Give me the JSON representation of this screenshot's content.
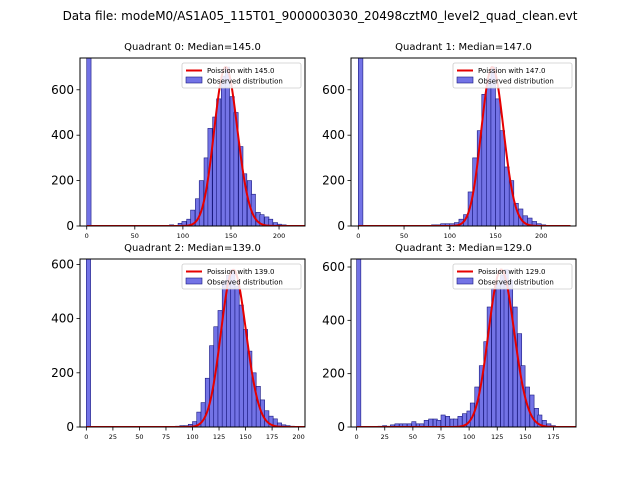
{
  "chart_data": {
    "suptitle": "Data file: modeM0/AS1A05_115T01_9000003030_20498cztM0_level2_quad_clean.evt",
    "panels": [
      {
        "type": "bar",
        "title": "Quadrant 0: Median=145.0",
        "xlim": [
          -7,
          227
        ],
        "ylim": [
          0,
          740
        ],
        "xticks": [
          0,
          50,
          100,
          150,
          200
        ],
        "yticks": [
          0,
          200,
          400,
          600
        ],
        "legend": [
          "Poission with 145.0",
          "Observed distribution"
        ],
        "mu": 145,
        "bin_width": 4.5,
        "bins": [
          [
            0,
            740
          ],
          [
            81,
            3
          ],
          [
            86,
            5
          ],
          [
            90,
            3
          ],
          [
            95,
            12
          ],
          [
            99,
            20
          ],
          [
            104,
            30
          ],
          [
            108,
            70
          ],
          [
            113,
            120
          ],
          [
            117,
            200
          ],
          [
            122,
            300
          ],
          [
            126,
            430
          ],
          [
            131,
            480
          ],
          [
            135,
            560
          ],
          [
            140,
            660
          ],
          [
            144,
            700
          ],
          [
            149,
            570
          ],
          [
            153,
            500
          ],
          [
            158,
            350
          ],
          [
            162,
            230
          ],
          [
            167,
            200
          ],
          [
            171,
            140
          ],
          [
            176,
            60
          ],
          [
            180,
            50
          ],
          [
            185,
            40
          ],
          [
            189,
            30
          ],
          [
            194,
            15
          ],
          [
            198,
            8
          ],
          [
            203,
            5
          ],
          [
            207,
            3
          ]
        ]
      },
      {
        "type": "bar",
        "title": "Quadrant 1: Median=147.0",
        "xlim": [
          -8,
          238
        ],
        "ylim": [
          0,
          740
        ],
        "xticks": [
          0,
          50,
          100,
          150,
          200
        ],
        "yticks": [
          0,
          200,
          400,
          600
        ],
        "legend": [
          "Poission with 147.0",
          "Observed distribution"
        ],
        "mu": 147,
        "bin_width": 5,
        "bins": [
          [
            0,
            740
          ],
          [
            80,
            5
          ],
          [
            85,
            5
          ],
          [
            90,
            10
          ],
          [
            95,
            10
          ],
          [
            100,
            10
          ],
          [
            105,
            15
          ],
          [
            110,
            30
          ],
          [
            115,
            50
          ],
          [
            120,
            150
          ],
          [
            125,
            300
          ],
          [
            130,
            420
          ],
          [
            135,
            580
          ],
          [
            140,
            650
          ],
          [
            145,
            700
          ],
          [
            150,
            560
          ],
          [
            155,
            420
          ],
          [
            160,
            260
          ],
          [
            165,
            200
          ],
          [
            170,
            100
          ],
          [
            175,
            75
          ],
          [
            180,
            45
          ],
          [
            185,
            35
          ],
          [
            190,
            20
          ],
          [
            195,
            10
          ],
          [
            200,
            5
          ]
        ]
      },
      {
        "type": "bar",
        "title": "Quadrant 2: Median=139.0",
        "xlim": [
          -6,
          206
        ],
        "ylim": [
          0,
          620
        ],
        "xticks": [
          0,
          25,
          50,
          75,
          100,
          125,
          150,
          175,
          200
        ],
        "yticks": [
          0,
          200,
          400,
          600
        ],
        "legend": [
          "Poission with 139.0",
          "Observed distribution"
        ],
        "mu": 139,
        "bin_width": 4,
        "bins": [
          [
            0,
            620
          ],
          [
            84,
            3
          ],
          [
            88,
            5
          ],
          [
            92,
            5
          ],
          [
            96,
            10
          ],
          [
            100,
            20
          ],
          [
            104,
            55
          ],
          [
            108,
            90
          ],
          [
            112,
            180
          ],
          [
            116,
            300
          ],
          [
            120,
            370
          ],
          [
            124,
            430
          ],
          [
            128,
            540
          ],
          [
            132,
            560
          ],
          [
            136,
            580
          ],
          [
            140,
            520
          ],
          [
            144,
            450
          ],
          [
            148,
            360
          ],
          [
            152,
            280
          ],
          [
            156,
            200
          ],
          [
            160,
            150
          ],
          [
            164,
            100
          ],
          [
            168,
            60
          ],
          [
            172,
            40
          ],
          [
            176,
            30
          ],
          [
            180,
            15
          ],
          [
            184,
            8
          ],
          [
            188,
            5
          ],
          [
            192,
            3
          ]
        ]
      },
      {
        "type": "bar",
        "title": "Quadrant 3: Median=129.0",
        "xlim": [
          -5,
          195
        ],
        "ylim": [
          0,
          630
        ],
        "xticks": [
          0,
          25,
          50,
          75,
          100,
          125,
          150,
          175
        ],
        "yticks": [
          0,
          200,
          400,
          600
        ],
        "legend": [
          "Poission with 129.0",
          "Observed distribution"
        ],
        "mu": 129,
        "bin_width": 3.75,
        "bins": [
          [
            0,
            630
          ],
          [
            19,
            3
          ],
          [
            23,
            5
          ],
          [
            26,
            3
          ],
          [
            30,
            8
          ],
          [
            34,
            12
          ],
          [
            38,
            12
          ],
          [
            41,
            12
          ],
          [
            45,
            12
          ],
          [
            49,
            20
          ],
          [
            53,
            12
          ],
          [
            56,
            12
          ],
          [
            60,
            25
          ],
          [
            64,
            30
          ],
          [
            68,
            30
          ],
          [
            71,
            25
          ],
          [
            75,
            45
          ],
          [
            79,
            40
          ],
          [
            83,
            30
          ],
          [
            86,
            30
          ],
          [
            90,
            40
          ],
          [
            94,
            50
          ],
          [
            98,
            60
          ],
          [
            101,
            90
          ],
          [
            105,
            150
          ],
          [
            109,
            230
          ],
          [
            113,
            320
          ],
          [
            116,
            450
          ],
          [
            120,
            520
          ],
          [
            124,
            540
          ],
          [
            128,
            570
          ],
          [
            131,
            590
          ],
          [
            135,
            550
          ],
          [
            139,
            450
          ],
          [
            143,
            350
          ],
          [
            146,
            230
          ],
          [
            150,
            150
          ],
          [
            154,
            120
          ],
          [
            158,
            70
          ],
          [
            161,
            45
          ],
          [
            165,
            25
          ],
          [
            169,
            12
          ],
          [
            173,
            5
          ]
        ]
      }
    ]
  }
}
